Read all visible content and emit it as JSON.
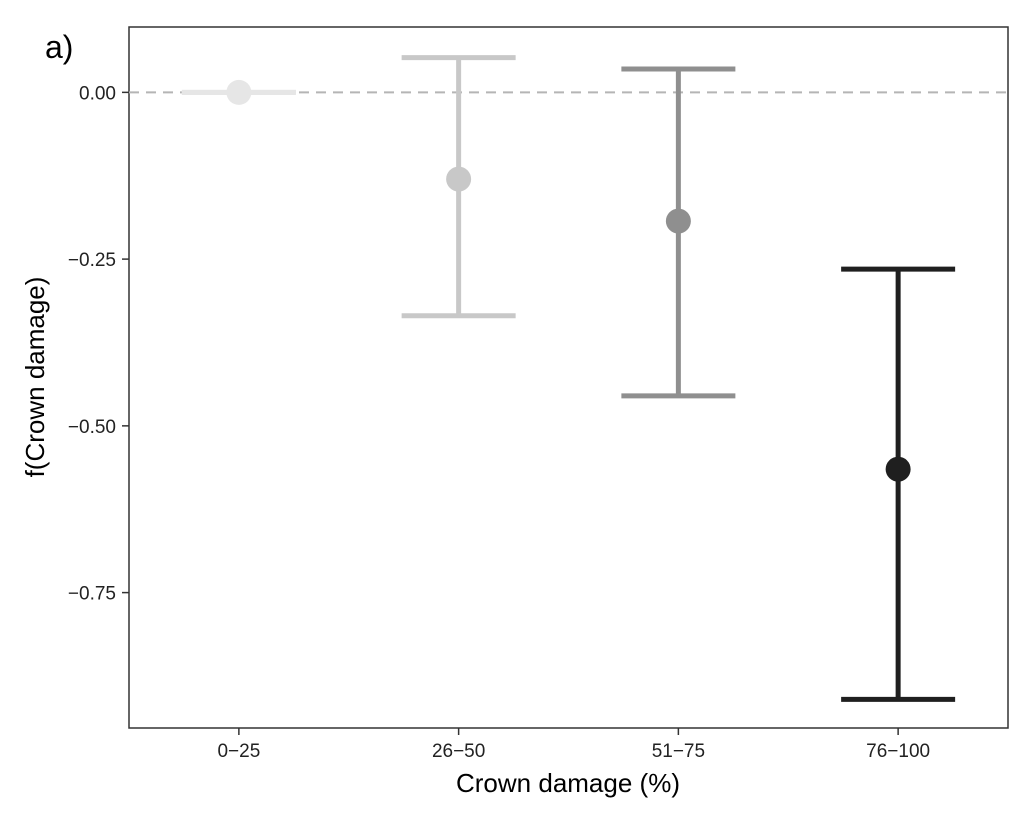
{
  "chart_data": {
    "type": "errorbar",
    "panel_label": "a)",
    "xlabel": "Crown damage (%)",
    "ylabel": "f(Crown damage)",
    "categories": [
      "0−25",
      "26−50",
      "51−75",
      "76−100"
    ],
    "points": [
      {
        "category": "0−25",
        "estimate": 0.0,
        "lower": 0.0,
        "upper": 0.0,
        "color": "#e6e6e6"
      },
      {
        "category": "26−50",
        "estimate": -0.13,
        "lower": -0.335,
        "upper": 0.052,
        "color": "#c8c8c8"
      },
      {
        "category": "51−75",
        "estimate": -0.193,
        "lower": -0.455,
        "upper": 0.035,
        "color": "#8f8f8f"
      },
      {
        "category": "76−100",
        "estimate": -0.565,
        "lower": -0.91,
        "upper": -0.265,
        "color": "#1f1f1f"
      }
    ],
    "yticks": [
      0.0,
      -0.25,
      -0.5,
      -0.75
    ],
    "ytick_labels": [
      "0.00",
      "−0.25",
      "−0.50",
      "−0.75"
    ],
    "ylim": [
      -0.953,
      0.098
    ],
    "reference_line": {
      "y": 0.0,
      "style": "dashed",
      "color": "#b5b5b5"
    },
    "grid": false
  }
}
